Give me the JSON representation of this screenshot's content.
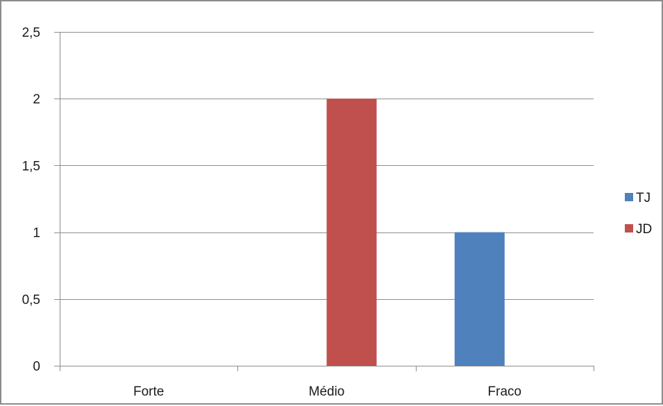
{
  "chart_data": {
    "type": "bar",
    "categories": [
      "Forte",
      "Médio",
      "Fraco"
    ],
    "series": [
      {
        "name": "TJ",
        "color": "#4f81bd",
        "values": [
          0,
          0,
          1
        ]
      },
      {
        "name": "JD",
        "color": "#c0504d",
        "values": [
          0,
          2,
          0
        ]
      }
    ],
    "ylim": [
      0,
      2.5
    ],
    "yticks": [
      "0",
      "0,5",
      "1",
      "1,5",
      "2",
      "2,5"
    ],
    "ytick_values": [
      0,
      0.5,
      1,
      1.5,
      2,
      2.5
    ],
    "grid": true,
    "legend_position": "right",
    "gridline_color": "#8c8c8c",
    "axis_color": "#8c8c8c"
  }
}
